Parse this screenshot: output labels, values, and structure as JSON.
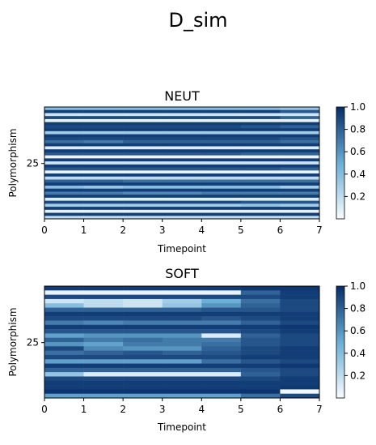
{
  "suptitle": "D_sim",
  "colormap": {
    "name": "Blues",
    "low": "#f7fbff",
    "high": "#08306b"
  },
  "chart_data": [
    {
      "type": "heatmap",
      "title": "NEUT",
      "xlabel": "Timepoint",
      "ylabel": "Polymorphism",
      "x_ticks": [
        "0",
        "1",
        "2",
        "3",
        "4",
        "5",
        "6",
        "7"
      ],
      "y_ticks": [
        "25"
      ],
      "colorbar_ticks": [
        "0.2",
        "0.4",
        "0.6",
        "0.8",
        "1.0"
      ],
      "vmin": 0.0,
      "vmax": 1.0,
      "n_timepoints": 7,
      "rows": [
        [
          0.4,
          0.4,
          0.4,
          0.4,
          0.4,
          0.4,
          0.35
        ],
        [
          0.95,
          0.95,
          0.95,
          0.95,
          0.95,
          0.95,
          0.85
        ],
        [
          0.15,
          0.15,
          0.15,
          0.15,
          0.15,
          0.15,
          0.15
        ],
        [
          0.9,
          0.9,
          0.9,
          0.9,
          0.9,
          0.9,
          0.8
        ],
        [
          0.05,
          0.05,
          0.05,
          0.05,
          0.05,
          0.05,
          0.05
        ],
        [
          0.95,
          0.95,
          0.95,
          0.95,
          0.95,
          0.95,
          0.95
        ],
        [
          0.9,
          0.9,
          0.9,
          0.9,
          0.9,
          0.85,
          0.8
        ],
        [
          0.95,
          0.95,
          0.95,
          0.95,
          0.95,
          0.95,
          0.95
        ],
        [
          0.3,
          0.3,
          0.3,
          0.3,
          0.3,
          0.3,
          0.3
        ],
        [
          0.95,
          0.95,
          0.95,
          0.95,
          0.95,
          0.95,
          0.95
        ],
        [
          0.9,
          0.9,
          0.9,
          0.9,
          0.9,
          0.9,
          0.85
        ],
        [
          0.75,
          0.7,
          0.8,
          0.8,
          0.8,
          0.8,
          0.75
        ],
        [
          0.95,
          0.95,
          0.95,
          0.95,
          0.95,
          0.95,
          0.95
        ],
        [
          0.1,
          0.1,
          0.1,
          0.1,
          0.1,
          0.1,
          0.1
        ],
        [
          0.95,
          0.95,
          0.95,
          0.95,
          0.95,
          0.95,
          0.95
        ],
        [
          0.85,
          0.85,
          0.85,
          0.85,
          0.85,
          0.8,
          0.8
        ],
        [
          0.05,
          0.05,
          0.05,
          0.05,
          0.05,
          0.05,
          0.05
        ],
        [
          0.95,
          0.95,
          0.95,
          0.95,
          0.95,
          0.95,
          0.95
        ],
        [
          0.15,
          0.15,
          0.15,
          0.15,
          0.15,
          0.15,
          0.15
        ],
        [
          0.95,
          0.95,
          0.95,
          0.95,
          0.95,
          0.95,
          0.95
        ],
        [
          0.85,
          0.85,
          0.85,
          0.85,
          0.85,
          0.85,
          0.8
        ],
        [
          0.05,
          0.05,
          0.05,
          0.05,
          0.05,
          0.05,
          0.05
        ],
        [
          0.95,
          0.95,
          0.95,
          0.95,
          0.95,
          0.95,
          0.95
        ],
        [
          0.2,
          0.2,
          0.2,
          0.2,
          0.2,
          0.2,
          0.2
        ],
        [
          0.8,
          0.8,
          0.75,
          0.75,
          0.75,
          0.75,
          0.75
        ],
        [
          0.95,
          0.95,
          0.95,
          0.95,
          0.95,
          0.95,
          0.95
        ],
        [
          0.4,
          0.35,
          0.4,
          0.4,
          0.4,
          0.4,
          0.3
        ],
        [
          0.95,
          0.95,
          0.95,
          0.95,
          0.95,
          0.95,
          0.95
        ],
        [
          0.7,
          0.7,
          0.65,
          0.65,
          0.7,
          0.7,
          0.7
        ],
        [
          0.95,
          0.95,
          0.95,
          0.95,
          0.95,
          0.95,
          0.95
        ],
        [
          0.1,
          0.1,
          0.1,
          0.1,
          0.1,
          0.1,
          0.1
        ],
        [
          0.9,
          0.9,
          0.9,
          0.9,
          0.9,
          0.85,
          0.85
        ],
        [
          0.3,
          0.3,
          0.3,
          0.3,
          0.3,
          0.35,
          0.3
        ],
        [
          0.95,
          0.95,
          0.95,
          0.95,
          0.95,
          0.95,
          0.95
        ],
        [
          0.05,
          0.05,
          0.05,
          0.05,
          0.05,
          0.05,
          0.05
        ],
        [
          0.95,
          0.95,
          0.95,
          0.95,
          0.95,
          0.95,
          0.95
        ],
        [
          0.2,
          0.2,
          0.2,
          0.2,
          0.2,
          0.2,
          0.2
        ]
      ]
    },
    {
      "type": "heatmap",
      "title": "SOFT",
      "xlabel": "Timepoint",
      "ylabel": "Polymorphism",
      "x_ticks": [
        "0",
        "1",
        "2",
        "3",
        "4",
        "5",
        "6",
        "7"
      ],
      "y_ticks": [
        "25"
      ],
      "colorbar_ticks": [
        "0.2",
        "0.4",
        "0.6",
        "0.8",
        "1.0"
      ],
      "vmin": 0.0,
      "vmax": 1.0,
      "n_timepoints": 7,
      "rows": [
        [
          0.95,
          0.95,
          0.95,
          0.95,
          0.95,
          0.97,
          0.97
        ],
        [
          0.05,
          0.05,
          0.05,
          0.05,
          0.05,
          0.8,
          0.95
        ],
        [
          0.9,
          0.9,
          0.9,
          0.9,
          0.9,
          0.9,
          0.95
        ],
        [
          0.15,
          0.2,
          0.15,
          0.3,
          0.5,
          0.75,
          0.9
        ],
        [
          0.4,
          0.2,
          0.15,
          0.35,
          0.6,
          0.8,
          0.9
        ],
        [
          0.8,
          0.8,
          0.8,
          0.8,
          0.85,
          0.85,
          0.9
        ],
        [
          0.95,
          0.95,
          0.95,
          0.95,
          0.95,
          0.95,
          0.95
        ],
        [
          0.9,
          0.9,
          0.9,
          0.9,
          0.85,
          0.9,
          0.95
        ],
        [
          0.7,
          0.65,
          0.7,
          0.7,
          0.7,
          0.8,
          0.9
        ],
        [
          0.95,
          0.95,
          0.95,
          0.95,
          0.95,
          0.95,
          0.97
        ],
        [
          0.85,
          0.85,
          0.85,
          0.85,
          0.85,
          0.9,
          0.95
        ],
        [
          0.55,
          0.6,
          0.6,
          0.6,
          0.1,
          0.8,
          0.9
        ],
        [
          0.8,
          0.7,
          0.75,
          0.7,
          0.7,
          0.85,
          0.9
        ],
        [
          0.6,
          0.55,
          0.7,
          0.7,
          0.75,
          0.85,
          0.9
        ],
        [
          0.9,
          0.65,
          0.6,
          0.6,
          0.8,
          0.9,
          0.95
        ],
        [
          0.75,
          0.8,
          0.85,
          0.8,
          0.85,
          0.9,
          0.95
        ],
        [
          0.9,
          0.9,
          0.9,
          0.9,
          0.9,
          0.95,
          0.95
        ],
        [
          0.55,
          0.55,
          0.55,
          0.55,
          0.75,
          0.85,
          0.9
        ],
        [
          0.95,
          0.95,
          0.95,
          0.95,
          0.95,
          0.95,
          0.97
        ],
        [
          0.8,
          0.8,
          0.8,
          0.8,
          0.8,
          0.85,
          0.9
        ],
        [
          0.35,
          0.1,
          0.1,
          0.1,
          0.1,
          0.8,
          0.9
        ],
        [
          0.9,
          0.9,
          0.9,
          0.9,
          0.9,
          0.9,
          0.95
        ],
        [
          0.95,
          0.95,
          0.95,
          0.95,
          0.95,
          0.95,
          0.95
        ],
        [
          0.95,
          0.95,
          0.95,
          0.95,
          0.95,
          0.95,
          0.97
        ],
        [
          0.98,
          0.98,
          0.98,
          0.98,
          0.98,
          0.98,
          0.02
        ],
        [
          0.55,
          0.55,
          0.55,
          0.55,
          0.55,
          0.75,
          0.9
        ]
      ]
    }
  ]
}
